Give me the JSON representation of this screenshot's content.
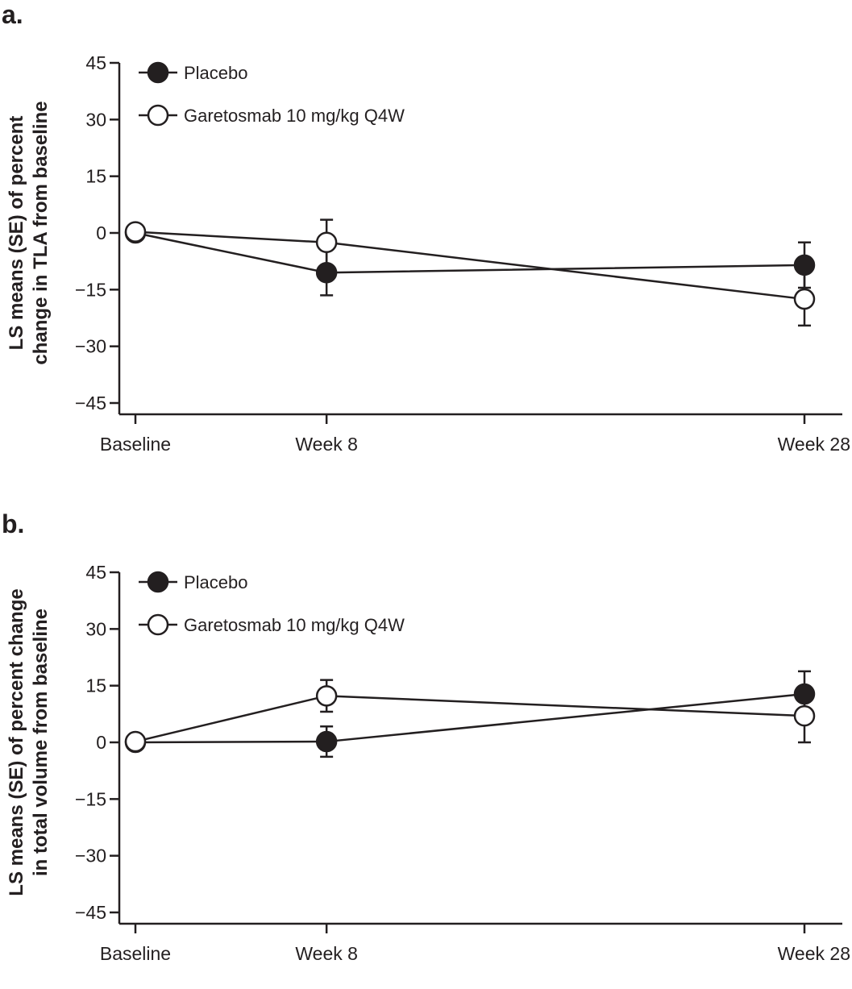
{
  "chart_data": [
    {
      "panel_label": "a.",
      "type": "line",
      "title": "",
      "xlabel": "",
      "ylabel_lines": [
        "LS means (SE) of percent",
        "change in TLA from baseline"
      ],
      "categories": [
        "Baseline",
        "Week 8",
        "Week 28"
      ],
      "x": [
        0,
        8,
        28
      ],
      "ylim": [
        -45,
        45
      ],
      "yticks": [
        45,
        30,
        15,
        0,
        -15,
        -30,
        -45
      ],
      "ytick_labels": [
        "45",
        "30",
        "15",
        "0",
        "−15",
        "−30",
        "−45"
      ],
      "grid": false,
      "legend_position": "top-left",
      "series": [
        {
          "name": "Placebo",
          "marker": "filled",
          "values": [
            0,
            -10.5,
            -8.5
          ],
          "se": [
            0,
            6,
            6
          ]
        },
        {
          "name": "Garetosmab 10 mg/kg Q4W",
          "marker": "open",
          "values": [
            0.3,
            -2.5,
            -17.5
          ],
          "se": [
            0,
            6,
            7
          ]
        }
      ]
    },
    {
      "panel_label": "b.",
      "type": "line",
      "title": "",
      "xlabel": "",
      "ylabel_lines": [
        "LS means (SE) of percent change",
        "in total volume from baseline"
      ],
      "categories": [
        "Baseline",
        "Week 8",
        "Week 28"
      ],
      "x": [
        0,
        8,
        28
      ],
      "ylim": [
        -45,
        45
      ],
      "yticks": [
        45,
        30,
        15,
        0,
        -15,
        -30,
        -45
      ],
      "ytick_labels": [
        "45",
        "30",
        "15",
        "0",
        "−15",
        "−30",
        "−45"
      ],
      "grid": false,
      "legend_position": "top-left",
      "series": [
        {
          "name": "Placebo",
          "marker": "filled",
          "values": [
            0,
            0.2,
            12.8
          ],
          "se": [
            0,
            4,
            6
          ]
        },
        {
          "name": "Garetosmab 10 mg/kg Q4W",
          "marker": "open",
          "values": [
            0.2,
            12.3,
            7
          ],
          "se": [
            0,
            4.2,
            7
          ]
        }
      ]
    }
  ],
  "colors": {
    "ink": "#231f20",
    "open_fill": "#ffffff"
  }
}
